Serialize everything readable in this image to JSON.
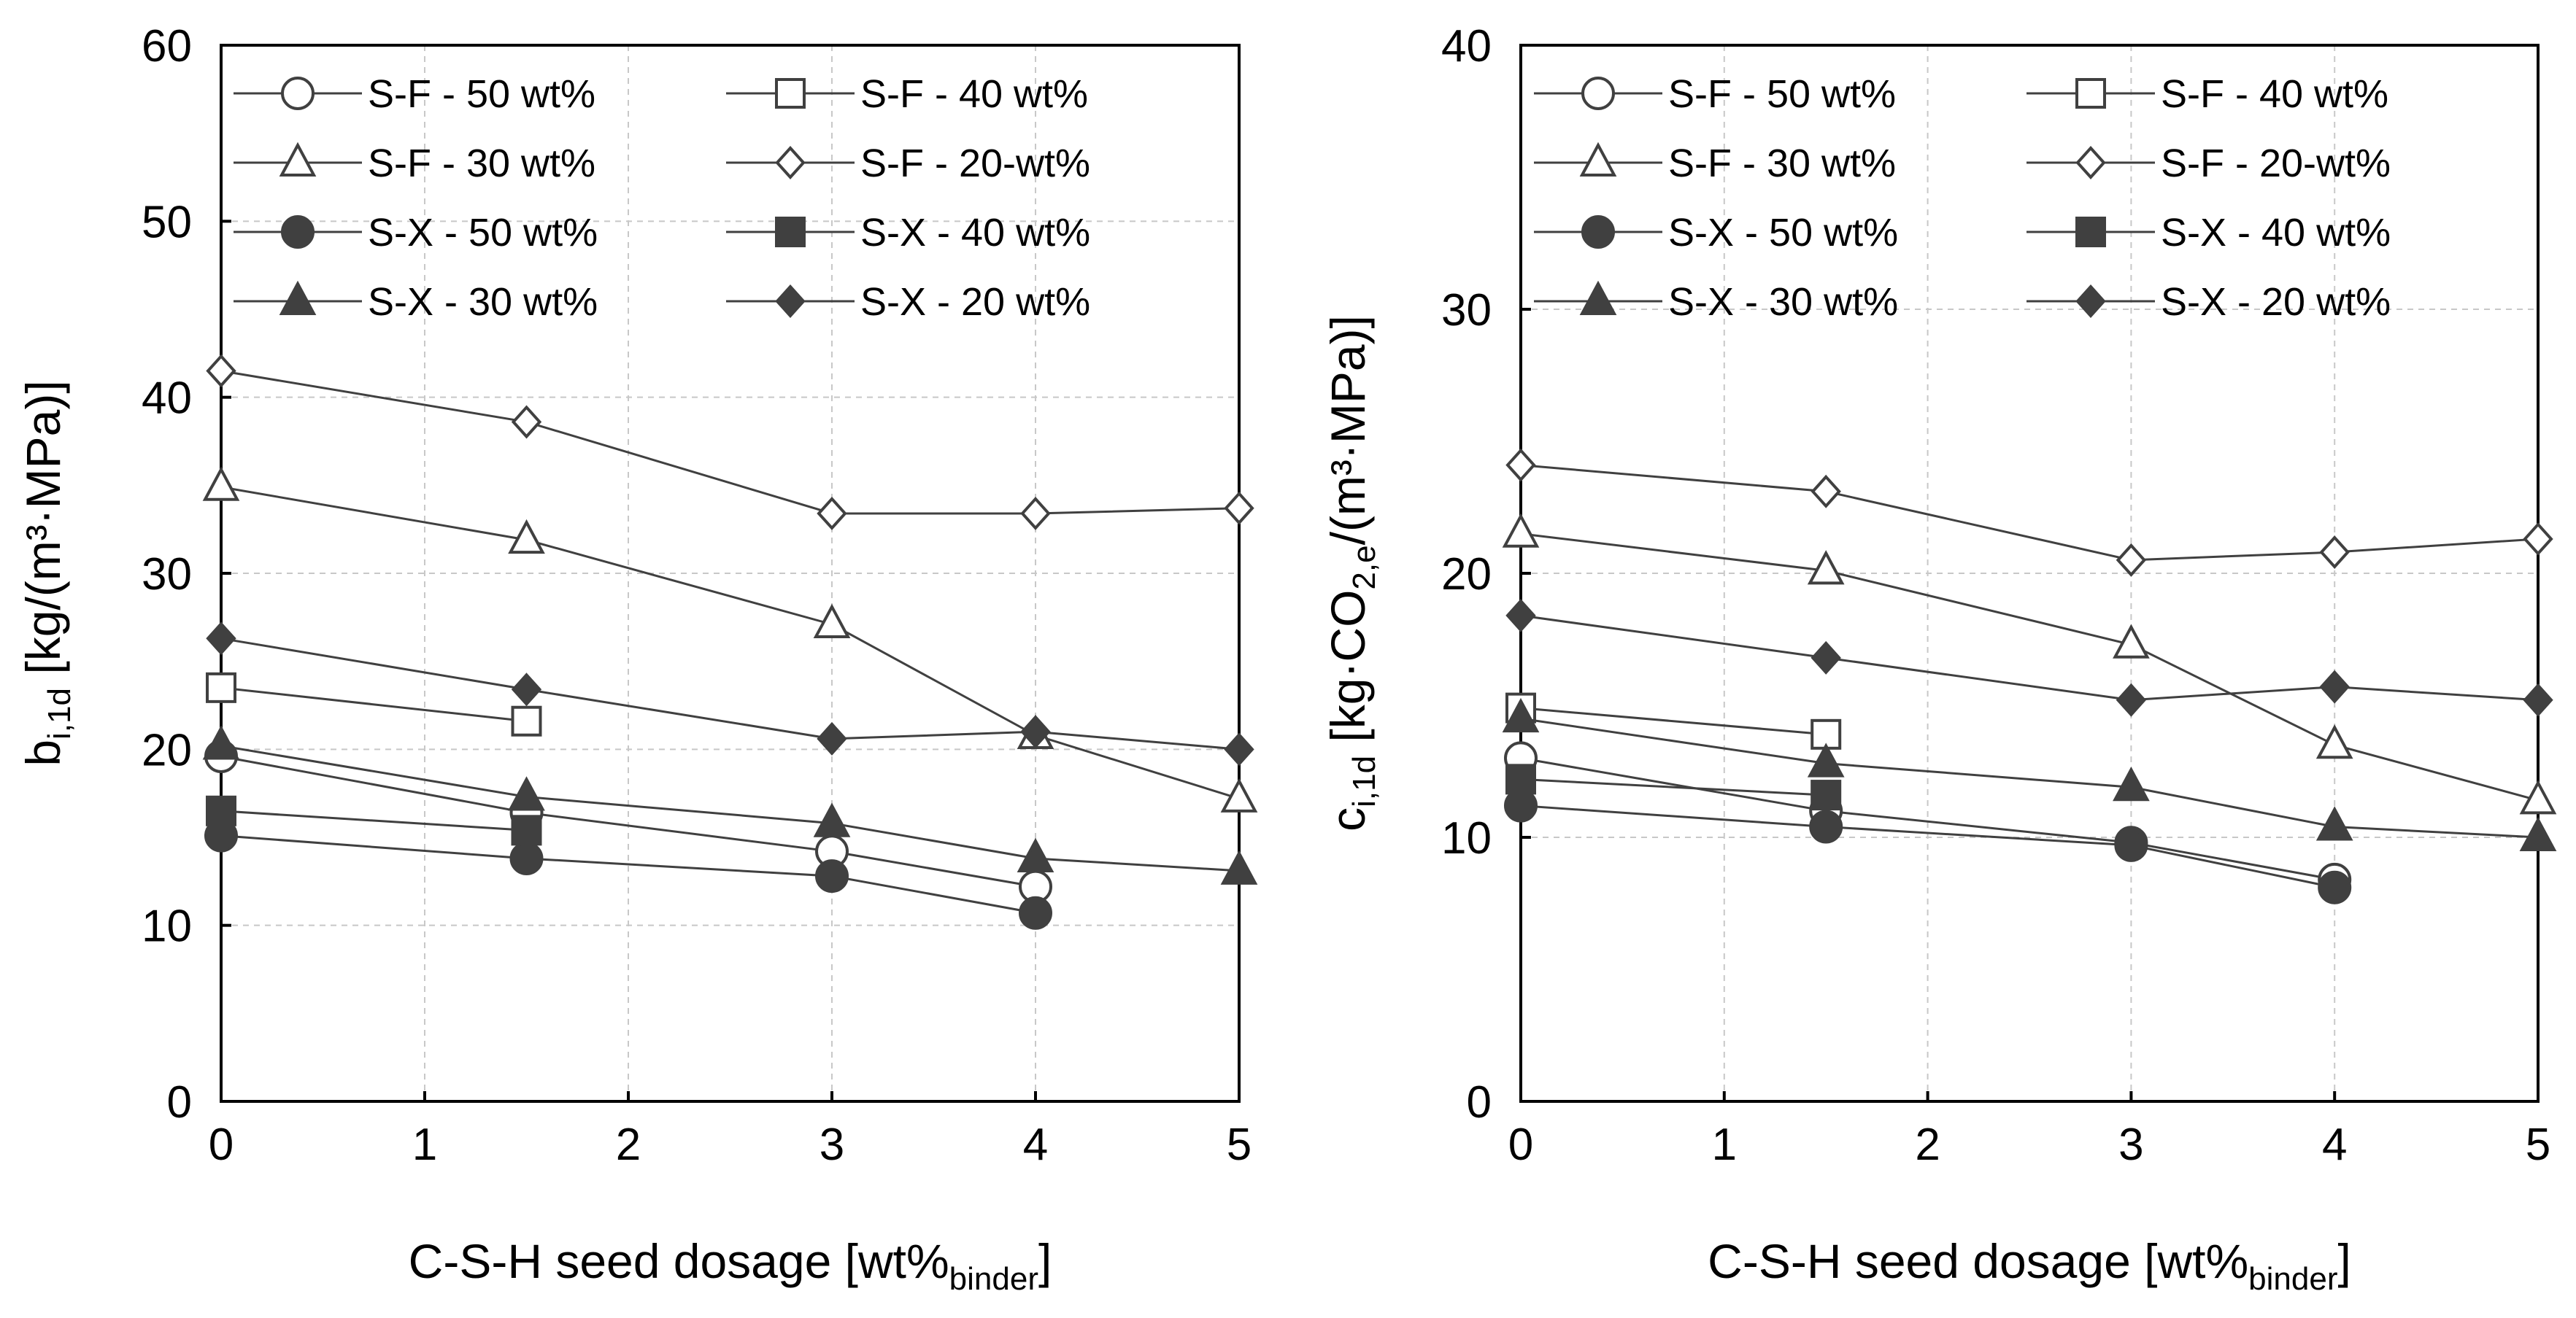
{
  "chart_data": [
    {
      "type": "line",
      "ylabel": {
        "main": "b",
        "sub": "i,1d",
        "rest": "[kg/(m³·MPa)]"
      },
      "xlabel": {
        "main": "C-S-H seed dosage [wt%",
        "sub": "binder",
        "rest": "]"
      },
      "xlim": [
        0,
        5
      ],
      "ylim": [
        0,
        60
      ],
      "xticks": [
        "0",
        "1",
        "2",
        "3",
        "4",
        "5"
      ],
      "yticks": [
        "0",
        "10",
        "20",
        "30",
        "40",
        "50",
        "60"
      ],
      "grid": true,
      "legend_position": "top",
      "series": [
        {
          "name": "S-F - 50 wt%",
          "marker": "circle",
          "filled": false,
          "x": [
            0,
            1.5,
            3,
            4
          ],
          "y": [
            19.6,
            16.4,
            14.2,
            12.2
          ]
        },
        {
          "name": "S-F - 40 wt%",
          "marker": "square",
          "filled": false,
          "x": [
            0,
            1.5
          ],
          "y": [
            23.5,
            21.6
          ]
        },
        {
          "name": "S-F - 30 wt%",
          "marker": "triangle",
          "filled": false,
          "x": [
            0,
            1.5,
            3,
            4,
            5
          ],
          "y": [
            34.9,
            31.9,
            27.1,
            20.8,
            17.2
          ]
        },
        {
          "name": "S-F - 20-wt%",
          "marker": "diamond",
          "filled": false,
          "x": [
            0,
            1.5,
            3,
            4,
            5
          ],
          "y": [
            41.5,
            38.6,
            33.4,
            33.4,
            33.7
          ]
        },
        {
          "name": "S-X - 50 wt%",
          "marker": "circle",
          "filled": true,
          "x": [
            0,
            1.5,
            3,
            4
          ],
          "y": [
            15.1,
            13.8,
            12.8,
            10.7
          ]
        },
        {
          "name": "S-X - 40 wt%",
          "marker": "square",
          "filled": true,
          "x": [
            0,
            1.5
          ],
          "y": [
            16.5,
            15.4
          ]
        },
        {
          "name": "S-X - 30 wt%",
          "marker": "triangle",
          "filled": true,
          "x": [
            0,
            1.5,
            3,
            4,
            5
          ],
          "y": [
            20.2,
            17.3,
            15.8,
            13.8,
            13.1
          ]
        },
        {
          "name": "S-X - 20 wt%",
          "marker": "diamond",
          "filled": true,
          "x": [
            0,
            1.5,
            3,
            4,
            5
          ],
          "y": [
            26.3,
            23.4,
            20.6,
            21.0,
            20.0
          ]
        }
      ]
    },
    {
      "type": "line",
      "ylabel": {
        "main": "c",
        "sub": "i,1d",
        "rest": "[kg·CO",
        "sub2": "2,e",
        "rest2": "/(m³·MPa)]"
      },
      "xlabel": {
        "main": "C-S-H seed dosage [wt%",
        "sub": "binder",
        "rest": "]"
      },
      "xlim": [
        0,
        5
      ],
      "ylim": [
        0,
        40
      ],
      "xticks": [
        "0",
        "1",
        "2",
        "3",
        "4",
        "5"
      ],
      "yticks": [
        "0",
        "10",
        "20",
        "30",
        "40"
      ],
      "grid": true,
      "legend_position": "top",
      "series": [
        {
          "name": "S-F - 50 wt%",
          "marker": "circle",
          "filled": false,
          "x": [
            0,
            1.5,
            3,
            4
          ],
          "y": [
            13.0,
            11.0,
            9.8,
            8.4
          ]
        },
        {
          "name": "S-F - 40 wt%",
          "marker": "square",
          "filled": false,
          "x": [
            0,
            1.5
          ],
          "y": [
            14.9,
            13.9
          ]
        },
        {
          "name": "S-F - 30 wt%",
          "marker": "triangle",
          "filled": false,
          "x": [
            0,
            1.5,
            3,
            4,
            5
          ],
          "y": [
            21.5,
            20.1,
            17.3,
            13.5,
            11.4
          ]
        },
        {
          "name": "S-F - 20-wt%",
          "marker": "diamond",
          "filled": false,
          "x": [
            0,
            1.5,
            3,
            4,
            5
          ],
          "y": [
            24.1,
            23.1,
            20.5,
            20.8,
            21.3
          ]
        },
        {
          "name": "S-X - 50 wt%",
          "marker": "circle",
          "filled": true,
          "x": [
            0,
            1.5,
            3,
            4
          ],
          "y": [
            11.2,
            10.4,
            9.7,
            8.1
          ]
        },
        {
          "name": "S-X - 40 wt%",
          "marker": "square",
          "filled": true,
          "x": [
            0,
            1.5
          ],
          "y": [
            12.2,
            11.6
          ]
        },
        {
          "name": "S-X - 30 wt%",
          "marker": "triangle",
          "filled": true,
          "x": [
            0,
            1.5,
            3,
            4,
            5
          ],
          "y": [
            14.5,
            12.8,
            11.9,
            10.4,
            10.0
          ]
        },
        {
          "name": "S-X - 20 wt%",
          "marker": "diamond",
          "filled": true,
          "x": [
            0,
            1.5,
            3,
            4,
            5
          ],
          "y": [
            18.4,
            16.8,
            15.2,
            15.7,
            15.2
          ]
        }
      ]
    }
  ]
}
